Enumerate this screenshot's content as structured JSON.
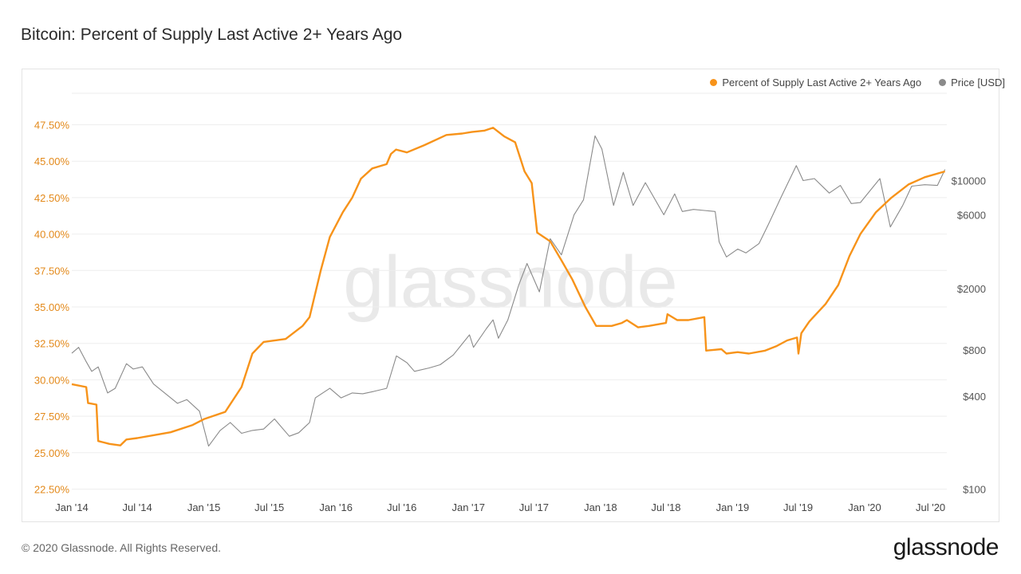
{
  "title": "Bitcoin: Percent of Supply Last Active 2+ Years Ago",
  "footer": "© 2020 Glassnode. All Rights Reserved.",
  "brand": "glassnode",
  "watermark": "glassnode",
  "colors": {
    "supply": "#f7931a",
    "price": "#8a8a8a",
    "grid": "#eeeeee",
    "axis_left": "#e3891a",
    "axis_right": "#555555"
  },
  "chart_data": {
    "type": "line",
    "legend": [
      "Percent of Supply Last Active 2+ Years Ago",
      "Price [USD]"
    ],
    "legend_position": "top-right",
    "x_ticks": [
      "Jan '14",
      "Jul '14",
      "Jan '15",
      "Jul '15",
      "Jan '16",
      "Jul '16",
      "Jan '17",
      "Jul '17",
      "Jan '18",
      "Jul '18",
      "Jan '19",
      "Jul '19",
      "Jan '20",
      "Jul '20"
    ],
    "x_range": [
      "2014-01-01",
      "2020-08-15"
    ],
    "y_left_ticks": [
      "22.50%",
      "25.00%",
      "27.50%",
      "30.00%",
      "32.50%",
      "35.00%",
      "37.50%",
      "40.00%",
      "42.50%",
      "45.00%",
      "47.50%"
    ],
    "y_left_range": [
      22.5,
      47.5
    ],
    "y_right_ticks": [
      "$100",
      "$400",
      "$800",
      "$2000",
      "$6000",
      "$10000"
    ],
    "y_right_scale": "log",
    "y_right_range": [
      100,
      20000
    ],
    "series": [
      {
        "name": "Percent of Supply Last Active 2+ Years Ago",
        "axis": "left",
        "points": [
          [
            "2014-01-01",
            29.7
          ],
          [
            "2014-02-10",
            29.5
          ],
          [
            "2014-02-15",
            28.4
          ],
          [
            "2014-03-10",
            28.3
          ],
          [
            "2014-03-15",
            25.8
          ],
          [
            "2014-04-15",
            25.6
          ],
          [
            "2014-05-15",
            25.5
          ],
          [
            "2014-06-01",
            25.9
          ],
          [
            "2014-07-01",
            26.0
          ],
          [
            "2014-08-15",
            26.2
          ],
          [
            "2014-10-01",
            26.4
          ],
          [
            "2014-12-01",
            26.9
          ],
          [
            "2015-01-01",
            27.3
          ],
          [
            "2015-03-01",
            27.8
          ],
          [
            "2015-04-15",
            29.5
          ],
          [
            "2015-05-15",
            31.8
          ],
          [
            "2015-06-15",
            32.6
          ],
          [
            "2015-08-15",
            32.8
          ],
          [
            "2015-10-01",
            33.7
          ],
          [
            "2015-10-20",
            34.3
          ],
          [
            "2015-11-20",
            37.5
          ],
          [
            "2015-12-15",
            39.8
          ],
          [
            "2016-01-20",
            41.5
          ],
          [
            "2016-02-15",
            42.5
          ],
          [
            "2016-03-10",
            43.8
          ],
          [
            "2016-04-10",
            44.5
          ],
          [
            "2016-05-20",
            44.8
          ],
          [
            "2016-06-01",
            45.5
          ],
          [
            "2016-06-15",
            45.8
          ],
          [
            "2016-07-15",
            45.6
          ],
          [
            "2016-09-01",
            46.1
          ],
          [
            "2016-11-01",
            46.8
          ],
          [
            "2016-12-15",
            46.9
          ],
          [
            "2017-01-10",
            47.0
          ],
          [
            "2017-02-15",
            47.1
          ],
          [
            "2017-03-10",
            47.3
          ],
          [
            "2017-04-10",
            46.7
          ],
          [
            "2017-05-10",
            46.3
          ],
          [
            "2017-06-05",
            44.3
          ],
          [
            "2017-06-25",
            43.5
          ],
          [
            "2017-07-10",
            40.1
          ],
          [
            "2017-08-15",
            39.5
          ],
          [
            "2017-09-15",
            38.2
          ],
          [
            "2017-10-15",
            36.9
          ],
          [
            "2017-11-20",
            35.0
          ],
          [
            "2017-12-20",
            33.7
          ],
          [
            "2018-02-01",
            33.7
          ],
          [
            "2018-03-01",
            33.9
          ],
          [
            "2018-03-15",
            34.1
          ],
          [
            "2018-04-15",
            33.6
          ],
          [
            "2018-05-15",
            33.7
          ],
          [
            "2018-07-01",
            33.9
          ],
          [
            "2018-07-05",
            34.5
          ],
          [
            "2018-08-01",
            34.1
          ],
          [
            "2018-09-01",
            34.1
          ],
          [
            "2018-10-15",
            34.3
          ],
          [
            "2018-10-20",
            32.0
          ],
          [
            "2018-12-01",
            32.1
          ],
          [
            "2018-12-15",
            31.8
          ],
          [
            "2019-01-15",
            31.9
          ],
          [
            "2019-02-15",
            31.8
          ],
          [
            "2019-04-01",
            32.0
          ],
          [
            "2019-05-01",
            32.3
          ],
          [
            "2019-06-01",
            32.7
          ],
          [
            "2019-06-28",
            32.9
          ],
          [
            "2019-07-02",
            31.8
          ],
          [
            "2019-07-10",
            33.2
          ],
          [
            "2019-08-01",
            34.0
          ],
          [
            "2019-09-15",
            35.2
          ],
          [
            "2019-10-20",
            36.5
          ],
          [
            "2019-11-20",
            38.5
          ],
          [
            "2019-12-20",
            40.0
          ],
          [
            "2020-02-01",
            41.5
          ],
          [
            "2020-03-15",
            42.5
          ],
          [
            "2020-05-01",
            43.4
          ],
          [
            "2020-06-15",
            43.9
          ],
          [
            "2020-08-10",
            44.3
          ]
        ]
      },
      {
        "name": "Price [USD]",
        "axis": "right",
        "points": [
          [
            "2014-01-01",
            760
          ],
          [
            "2014-01-20",
            830
          ],
          [
            "2014-02-10",
            670
          ],
          [
            "2014-02-25",
            580
          ],
          [
            "2014-03-15",
            620
          ],
          [
            "2014-04-10",
            420
          ],
          [
            "2014-05-01",
            450
          ],
          [
            "2014-06-01",
            650
          ],
          [
            "2014-06-20",
            600
          ],
          [
            "2014-07-15",
            620
          ],
          [
            "2014-08-15",
            480
          ],
          [
            "2014-09-20",
            410
          ],
          [
            "2014-10-20",
            360
          ],
          [
            "2014-11-15",
            380
          ],
          [
            "2014-12-20",
            320
          ],
          [
            "2015-01-14",
            190
          ],
          [
            "2015-02-15",
            240
          ],
          [
            "2015-03-15",
            270
          ],
          [
            "2015-04-15",
            230
          ],
          [
            "2015-05-15",
            240
          ],
          [
            "2015-06-15",
            245
          ],
          [
            "2015-07-15",
            285
          ],
          [
            "2015-08-25",
            220
          ],
          [
            "2015-09-20",
            232
          ],
          [
            "2015-10-20",
            270
          ],
          [
            "2015-11-05",
            390
          ],
          [
            "2015-12-15",
            450
          ],
          [
            "2016-01-15",
            390
          ],
          [
            "2016-02-15",
            420
          ],
          [
            "2016-03-15",
            415
          ],
          [
            "2016-04-15",
            430
          ],
          [
            "2016-05-20",
            450
          ],
          [
            "2016-06-16",
            730
          ],
          [
            "2016-07-15",
            660
          ],
          [
            "2016-08-05",
            580
          ],
          [
            "2016-09-15",
            610
          ],
          [
            "2016-10-15",
            640
          ],
          [
            "2016-11-20",
            740
          ],
          [
            "2017-01-04",
            1000
          ],
          [
            "2017-01-15",
            830
          ],
          [
            "2017-02-20",
            1100
          ],
          [
            "2017-03-10",
            1250
          ],
          [
            "2017-03-25",
            950
          ],
          [
            "2017-04-20",
            1250
          ],
          [
            "2017-05-20",
            2100
          ],
          [
            "2017-06-12",
            2900
          ],
          [
            "2017-07-16",
            1900
          ],
          [
            "2017-08-15",
            4200
          ],
          [
            "2017-09-15",
            3300
          ],
          [
            "2017-10-20",
            6000
          ],
          [
            "2017-11-15",
            7500
          ],
          [
            "2017-12-17",
            19500
          ],
          [
            "2018-01-05",
            16000
          ],
          [
            "2018-02-06",
            6900
          ],
          [
            "2018-03-05",
            11300
          ],
          [
            "2018-04-01",
            6900
          ],
          [
            "2018-05-05",
            9700
          ],
          [
            "2018-06-25",
            6000
          ],
          [
            "2018-07-25",
            8200
          ],
          [
            "2018-08-15",
            6300
          ],
          [
            "2018-09-15",
            6500
          ],
          [
            "2018-10-15",
            6400
          ],
          [
            "2018-11-14",
            6300
          ],
          [
            "2018-11-25",
            4000
          ],
          [
            "2018-12-15",
            3200
          ],
          [
            "2019-01-15",
            3600
          ],
          [
            "2019-02-07",
            3400
          ],
          [
            "2019-03-15",
            3900
          ],
          [
            "2019-04-10",
            5200
          ],
          [
            "2019-05-15",
            7800
          ],
          [
            "2019-06-26",
            12500
          ],
          [
            "2019-07-15",
            10000
          ],
          [
            "2019-08-15",
            10300
          ],
          [
            "2019-09-25",
            8300
          ],
          [
            "2019-10-26",
            9300
          ],
          [
            "2019-11-25",
            7100
          ],
          [
            "2019-12-20",
            7200
          ],
          [
            "2020-02-12",
            10300
          ],
          [
            "2020-03-12",
            5000
          ],
          [
            "2020-04-15",
            6900
          ],
          [
            "2020-05-10",
            9200
          ],
          [
            "2020-06-15",
            9400
          ],
          [
            "2020-07-20",
            9300
          ],
          [
            "2020-08-10",
            11800
          ]
        ]
      }
    ]
  }
}
